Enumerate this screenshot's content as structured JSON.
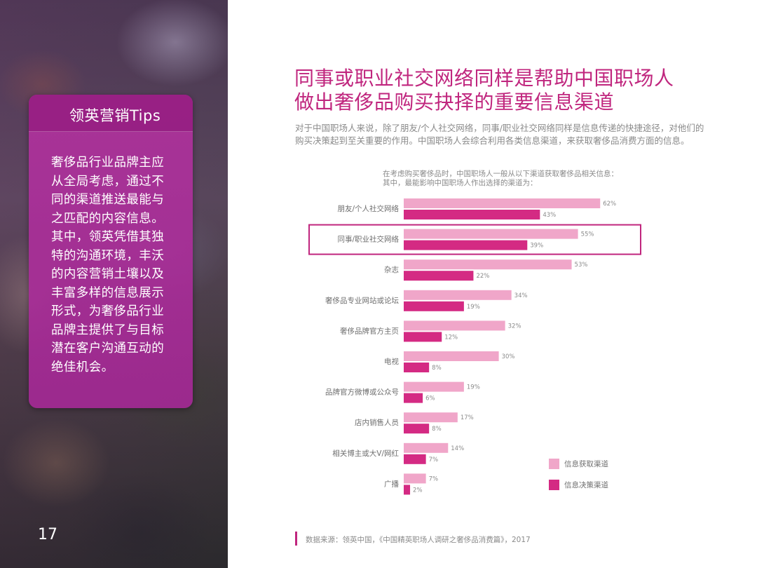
{
  "left_panel": {
    "tips_title": "领英营销Tips",
    "tips_text": "奢侈品行业品牌主应从全局考虑，通过不同的渠道推送最能与之匹配的内容信息。其中，领英凭借其独特的沟通环境，丰沃的内容营销土壤以及丰富多样的信息展示形式，为奢侈品行业品牌主提供了与目标潜在客户沟通互动的绝佳机会。",
    "page_number": "17"
  },
  "title": {
    "line1": "同事或职业社交网络同样是帮助中国职场人",
    "line2": "做出奢侈品购买抉择的重要信息渠道"
  },
  "description": "对于中国职场人来说，除了朋友/个人社交网络，同事/职业社交网络同样是信息传递的快捷途径，对他们的购买决策起到至关重要的作用。中国职场人会综合利用各类信息渠道，来获取奢侈品消费方面的信息。",
  "chart_note": {
    "line1": "在考虑购买奢侈品时，中国职场人一般从以下渠道获取奢侈品相关信息：",
    "line2": "其中，最能影响中国职场人作出选择的渠道为："
  },
  "colors": {
    "accent": "#c0267e",
    "series_info": "#f0a6c9",
    "series_decision": "#d42a83",
    "highlight_box": "#c0267e"
  },
  "chart_data": {
    "type": "bar",
    "orientation": "horizontal",
    "unit": "%",
    "categories": [
      "朋友/个人社交网络",
      "同事/职业社交网络",
      "杂志",
      "奢侈品专业网站或论坛",
      "奢侈品牌官方主页",
      "电视",
      "品牌官方微博或公众号",
      "店内销售人员",
      "相关博主或大V/网红",
      "广播"
    ],
    "series": [
      {
        "name": "信息获取渠道",
        "values": [
          62,
          55,
          53,
          34,
          32,
          30,
          19,
          17,
          14,
          7
        ]
      },
      {
        "name": "信息决策渠道",
        "values": [
          43,
          39,
          22,
          19,
          12,
          8,
          6,
          8,
          7,
          2
        ]
      }
    ],
    "highlighted_category": "同事/职业社交网络",
    "data_labels": true,
    "legend_position": "bottom-right",
    "grid": false
  },
  "footer": {
    "source": "数据来源：领英中国，《中国精英职场人调研之奢侈品消费篇》，2017"
  }
}
